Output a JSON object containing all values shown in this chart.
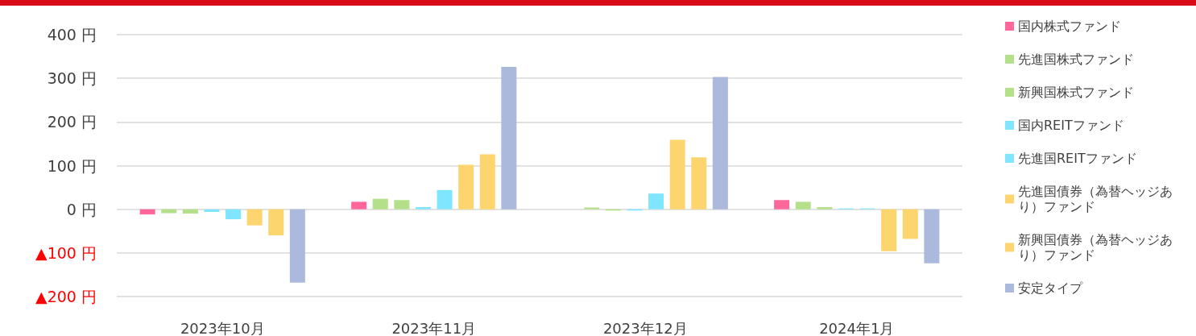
{
  "chart_data": {
    "type": "bar",
    "categories": [
      "2023年10月",
      "2023年11月",
      "2023年12月",
      "2024年1月"
    ],
    "series": [
      {
        "name": "国内株式ファンド",
        "color": "#ff6699",
        "values": [
          -12,
          17,
          0,
          21
        ]
      },
      {
        "name": "先進国株式ファンド",
        "color": "#b4e08a",
        "values": [
          -9,
          24,
          4,
          17
        ]
      },
      {
        "name": "新興国株式ファンド",
        "color": "#b4e08a",
        "values": [
          -10,
          21,
          -3,
          5
        ]
      },
      {
        "name": "国内REITファンド",
        "color": "#80e6ff",
        "values": [
          -6,
          5,
          -3,
          2
        ]
      },
      {
        "name": "先進国REITファンド",
        "color": "#80e6ff",
        "values": [
          -23,
          44,
          36,
          2
        ]
      },
      {
        "name": "先進国債券（為替ヘッジあり）ファンド",
        "color": "#fdd56e",
        "values": [
          -37,
          102,
          159,
          -96
        ]
      },
      {
        "name": "新興国債券（為替ヘッジあり）ファンド",
        "color": "#fdd56e",
        "values": [
          -60,
          126,
          119,
          -68
        ]
      },
      {
        "name": "安定タイプ",
        "color": "#abb9dd",
        "values": [
          -168,
          326,
          303,
          -124
        ]
      }
    ],
    "ylim": [
      -200,
      400
    ],
    "yticks": [
      {
        "value": -200,
        "label": "▲200 円"
      },
      {
        "value": -100,
        "label": "▲100 円"
      },
      {
        "value": 0,
        "label": "0 円"
      },
      {
        "value": 100,
        "label": "100 円"
      },
      {
        "value": 200,
        "label": "200 円"
      },
      {
        "value": 300,
        "label": "300 円"
      },
      {
        "value": 400,
        "label": "400 円"
      }
    ],
    "grid": "y",
    "legend": "right"
  }
}
